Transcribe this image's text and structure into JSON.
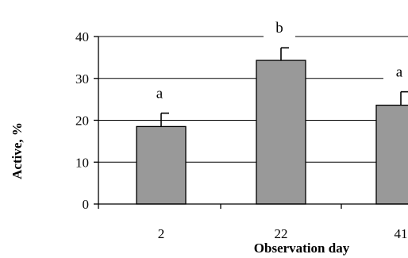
{
  "chart_data": {
    "type": "bar",
    "title": "",
    "xlabel": "Observation day",
    "ylabel": "Active, %",
    "categories": [
      "2",
      "22",
      "41"
    ],
    "values": [
      18.5,
      34.3,
      23.6
    ],
    "error_upper": [
      21.7,
      37.3,
      26.8
    ],
    "significance_letters": [
      "a",
      "b",
      "a"
    ],
    "ylim": [
      0,
      40
    ],
    "yticks": [
      0,
      10,
      20,
      30,
      40
    ],
    "grid": true,
    "bar_color": "#999999"
  }
}
